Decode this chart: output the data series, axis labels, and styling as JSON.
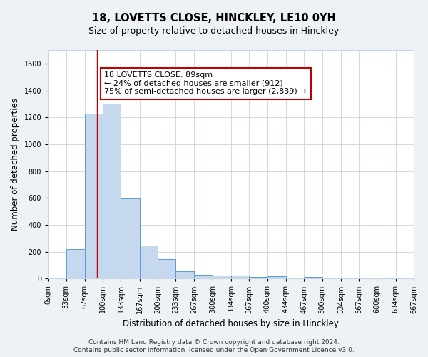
{
  "title": "18, LOVETTS CLOSE, HINCKLEY, LE10 0YH",
  "subtitle": "Size of property relative to detached houses in Hinckley",
  "xlabel": "Distribution of detached houses by size in Hinckley",
  "ylabel": "Number of detached properties",
  "footnote1": "Contains HM Land Registry data © Crown copyright and database right 2024.",
  "footnote2": "Contains public sector information licensed under the Open Government Licence v3.0.",
  "bin_edges": [
    0,
    33,
    67,
    100,
    133,
    167,
    200,
    233,
    267,
    300,
    334,
    367,
    400,
    434,
    467,
    500,
    534,
    567,
    600,
    634,
    667
  ],
  "bar_heights": [
    5,
    220,
    1225,
    1300,
    595,
    245,
    145,
    55,
    30,
    22,
    22,
    10,
    15,
    0,
    10,
    0,
    0,
    0,
    0,
    5
  ],
  "bar_color": "#c5d8ee",
  "bar_edge_color": "#5b9bd5",
  "vline_x": 89,
  "vline_color": "#c00000",
  "annotation_text": "18 LOVETTS CLOSE: 89sqm\n← 24% of detached houses are smaller (912)\n75% of semi-detached houses are larger (2,839) →",
  "annotation_box_color": "white",
  "annotation_box_edge_color": "#c00000",
  "ylim": [
    0,
    1700
  ],
  "yticks": [
    0,
    200,
    400,
    600,
    800,
    1000,
    1200,
    1400,
    1600
  ],
  "bg_color": "#eef2f7",
  "plot_bg_color": "#ffffff",
  "grid_color": "#c8d4e0",
  "title_fontsize": 10.5,
  "subtitle_fontsize": 9,
  "axis_label_fontsize": 8.5,
  "tick_fontsize": 7,
  "annotation_fontsize": 8,
  "footnote_fontsize": 6.5
}
